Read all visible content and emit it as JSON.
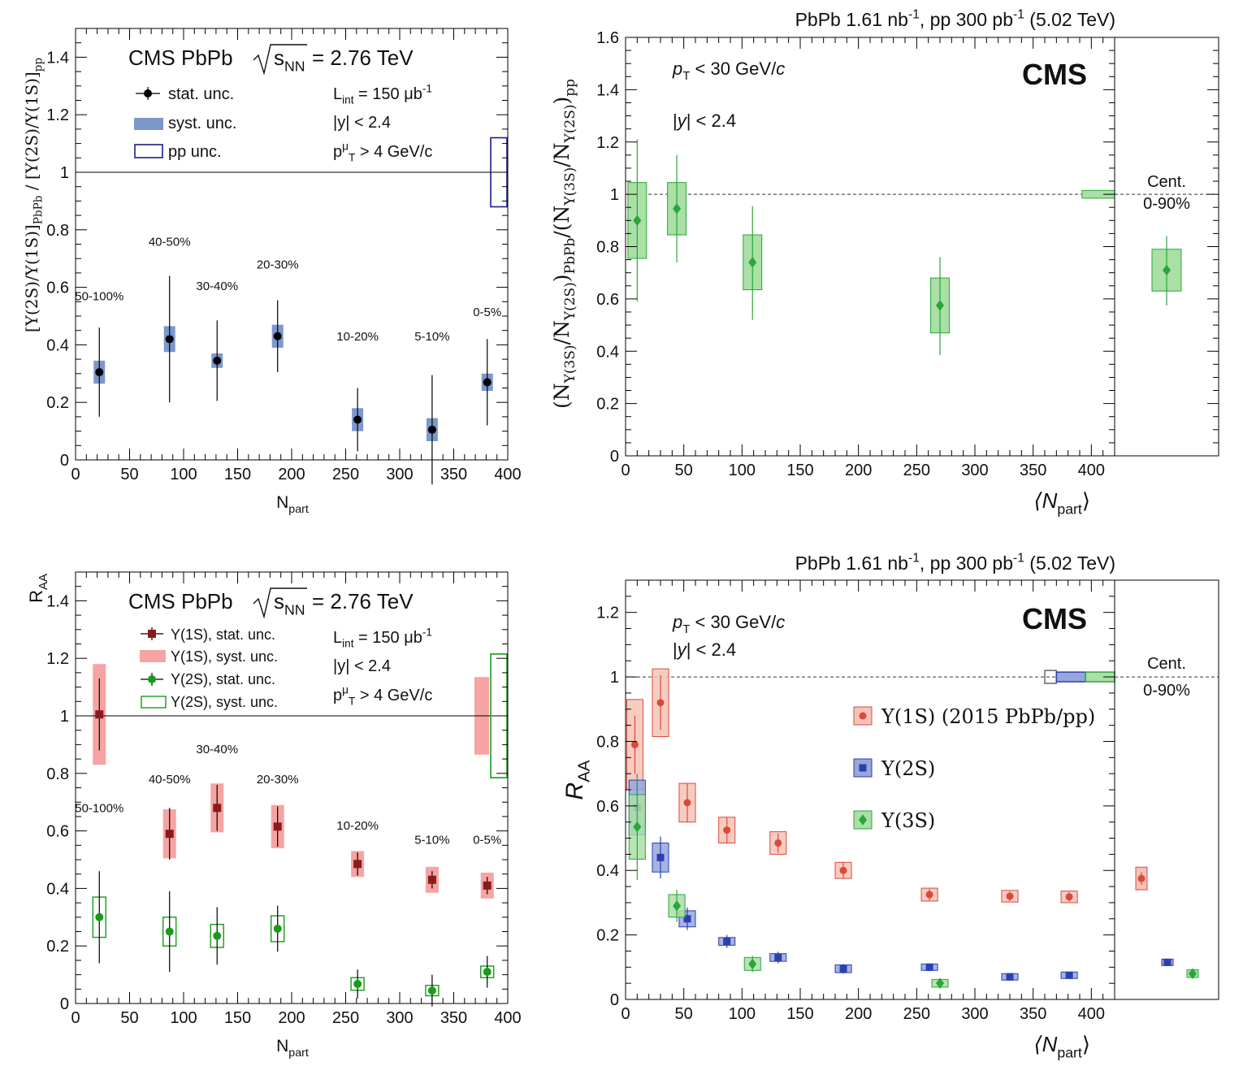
{
  "colors": {
    "syst_blue": "#7d97cc",
    "pp_box": "#1c1c8c",
    "red_fill": "#f6a3a3",
    "red_mark": "#8b1a1a",
    "green": "#1a9a1a",
    "green_fill": "#a9dfa1",
    "r_red": "#d94a3c",
    "r_red_fill": "#f4c3b6",
    "r_blue": "#2a3fb0",
    "r_blue_fill": "#98a6dc",
    "r_green": "#2aa63a",
    "r_green_fill": "#aadfa6"
  },
  "chart_data": [
    {
      "type": "scatter",
      "id": "tl",
      "title": "",
      "header": "CMS PbPb",
      "sqrt_symbol": "s",
      "sqrt_sub": "NN",
      "energy": "= 2.76 TeV",
      "xlabel": "N",
      "xlabel_sub": "part",
      "ylabel": "[Υ(2S)/Υ(1S)]",
      "ylabel_sub": "PbPb",
      "ylabel_mid": "/ [Υ(2S)/Υ(1S)]",
      "ylabel_sub2": "pp",
      "xlim": [
        0,
        400
      ],
      "ylim": [
        0,
        1.5
      ],
      "xticks": [
        "0",
        "50",
        "100",
        "150",
        "200",
        "250",
        "300",
        "350",
        "400"
      ],
      "xtick_values": [
        0,
        50,
        100,
        150,
        200,
        250,
        300,
        350,
        400
      ],
      "yticks": [
        "0",
        "0.2",
        "0.4",
        "0.6",
        "0.8",
        "1",
        "1.2",
        "1.4"
      ],
      "ytick_values": [
        0,
        0.2,
        0.4,
        0.6,
        0.8,
        1,
        1.2,
        1.4
      ],
      "legend": [
        {
          "label": "stat. unc.",
          "kind": "stat"
        },
        {
          "label": "syst. unc.",
          "kind": "syst"
        },
        {
          "label": "pp unc.",
          "kind": "pp"
        }
      ],
      "info": {
        "lumi_pre": "L",
        "lumi_sub": "int",
        "lumi_post": " = 150 μb",
        "lumi_sup": "-1",
        "rapidity": "|y| < 2.4",
        "pt_pre": "p",
        "pt_sup": "μ",
        "pt_sub": "T",
        "pt_post": " > 4 GeV/c"
      },
      "reference_line": 1,
      "pp_unc": {
        "low": 0.88,
        "high": 1.12
      },
      "series": [
        {
          "name": "Υ(2S)/Υ(1S) double ratio",
          "x": [
            22,
            87,
            131,
            187,
            261,
            330,
            381
          ],
          "y": [
            0.305,
            0.42,
            0.345,
            0.43,
            0.14,
            0.105,
            0.27
          ],
          "stat": [
            0.155,
            0.22,
            0.14,
            0.125,
            0.11,
            0.19,
            0.15
          ],
          "syst": [
            0.04,
            0.045,
            0.025,
            0.04,
            0.04,
            0.04,
            0.03
          ],
          "labels": [
            "50-100%",
            "40-50%",
            "30-40%",
            "20-30%",
            "10-20%",
            "5-10%",
            "0-5%"
          ],
          "label_y": [
            0.555,
            0.745,
            0.59,
            0.665,
            0.415,
            0.415,
            0.5
          ]
        }
      ]
    },
    {
      "type": "scatter",
      "id": "tr",
      "title": "PbPb 1.61 nb",
      "title_sup": "-1",
      "title_mid": ", pp 300 pb",
      "title_sup2": "-1",
      "title_post": " (5.02 TeV)",
      "logo": "CMS",
      "xlabel": "⟨N",
      "xlabel_sub": "part",
      "xlabel_post": "⟩",
      "ylabel": "(N",
      "ylabel_sub": "Υ(3S)",
      "ylabel_mid": "/N",
      "ylabel_sub2": "Υ(2S)",
      "ylabel_close": ")",
      "ylabel_sub3": "PbPb",
      "ylabel_slash": "/",
      "ylabel_mid2": "(N",
      "ylabel_sub4": "Υ(3S)",
      "ylabel_mid3": "/N",
      "ylabel_sub5": "Υ(2S)",
      "ylabel_close2": ")",
      "ylabel_sub6": "pp",
      "xlim": [
        0,
        420
      ],
      "ylim": [
        0,
        1.6
      ],
      "xticks": [
        "0",
        "50",
        "100",
        "150",
        "200",
        "250",
        "300",
        "350",
        "400"
      ],
      "xtick_values": [
        0,
        50,
        100,
        150,
        200,
        250,
        300,
        350,
        400
      ],
      "yticks": [
        "0",
        "0.2",
        "0.4",
        "0.6",
        "0.8",
        "1",
        "1.2",
        "1.4",
        "1.6"
      ],
      "ytick_values": [
        0,
        0.2,
        0.4,
        0.6,
        0.8,
        1,
        1.2,
        1.4,
        1.6
      ],
      "cuts": {
        "pt_pre": "p",
        "pt_sub": "T",
        "pt_post": " < 30 GeV/",
        "pt_unit": "c",
        "y_pre": "|",
        "y_var": "y",
        "y_post": "| < 2.4"
      },
      "reference_line": 1,
      "global_unc": {
        "x0": 392,
        "x1": 420,
        "low": 0.985,
        "high": 1.015
      },
      "cent_label": "Cent.",
      "cent_range": "0-90%",
      "series": [
        {
          "name": "Υ(3S)/Υ(2S) double ratio",
          "x": [
            10,
            44,
            109,
            270
          ],
          "y": [
            0.9,
            0.945,
            0.74,
            0.575
          ],
          "stat_lo": [
            0.31,
            0.205,
            0.22,
            0.19
          ],
          "stat_hi": [
            0.31,
            0.205,
            0.215,
            0.185
          ],
          "syst": [
            0.145,
            0.1,
            0.105,
            0.105
          ],
          "box_halfwidth": [
            8,
            8,
            8,
            8
          ]
        }
      ],
      "integrated": {
        "y": 0.71,
        "stat_lo": 0.135,
        "stat_hi": 0.13,
        "syst_lo": 0.08,
        "syst_hi": 0.08
      }
    },
    {
      "type": "scatter",
      "id": "bl",
      "title": "",
      "header": "CMS PbPb",
      "sqrt_symbol": "s",
      "sqrt_sub": "NN",
      "energy": "= 2.76 TeV",
      "xlabel": "N",
      "xlabel_sub": "part",
      "ylabel": "R",
      "ylabel_sub": "AA",
      "xlim": [
        0,
        400
      ],
      "ylim": [
        0,
        1.5
      ],
      "xticks": [
        "0",
        "50",
        "100",
        "150",
        "200",
        "250",
        "300",
        "350",
        "400"
      ],
      "xtick_values": [
        0,
        50,
        100,
        150,
        200,
        250,
        300,
        350,
        400
      ],
      "yticks": [
        "0",
        "0.2",
        "0.4",
        "0.6",
        "0.8",
        "1",
        "1.2",
        "1.4"
      ],
      "ytick_values": [
        0,
        0.2,
        0.4,
        0.6,
        0.8,
        1,
        1.2,
        1.4
      ],
      "legend": [
        {
          "label": "Υ(1S), stat. unc.",
          "kind": "red_stat"
        },
        {
          "label": "Υ(1S), syst. unc.",
          "kind": "red_syst"
        },
        {
          "label": "Υ(2S), stat. unc.",
          "kind": "green_stat"
        },
        {
          "label": "Υ(2S), syst. unc.",
          "kind": "green_syst"
        }
      ],
      "info": {
        "lumi_pre": "L",
        "lumi_sub": "int",
        "lumi_post": " = 150 μb",
        "lumi_sup": "-1",
        "rapidity": "|y| < 2.4",
        "pt_pre": "p",
        "pt_sup": "μ",
        "pt_sub": "T",
        "pt_post": " > 4 GeV/c"
      },
      "reference_line": 1,
      "global_unc_red": {
        "low": 0.865,
        "high": 1.135
      },
      "global_unc_green": {
        "low": 0.785,
        "high": 1.215
      },
      "series": [
        {
          "name": "Υ(1S)",
          "x": [
            22,
            87,
            131,
            187,
            261,
            330,
            381
          ],
          "y": [
            1.005,
            0.59,
            0.68,
            0.615,
            0.485,
            0.43,
            0.41
          ],
          "stat": [
            0.125,
            0.09,
            0.08,
            0.07,
            0.04,
            0.03,
            0.03
          ],
          "syst": [
            0.175,
            0.085,
            0.085,
            0.075,
            0.045,
            0.045,
            0.045
          ]
        },
        {
          "name": "Υ(2S)",
          "x": [
            22,
            87,
            131,
            187,
            261,
            330,
            381
          ],
          "y": [
            0.3,
            0.25,
            0.235,
            0.26,
            0.068,
            0.045,
            0.11
          ],
          "stat": [
            0.16,
            0.14,
            0.1,
            0.08,
            0.05,
            0.055,
            0.055
          ],
          "syst": [
            0.07,
            0.05,
            0.04,
            0.045,
            0.022,
            0.018,
            0.02
          ],
          "labels": [
            "50-100%",
            "40-50%",
            "30-40%",
            "20-30%",
            "10-20%",
            "5-10%",
            "0-5%"
          ],
          "label_y": [
            0.665,
            0.765,
            0.87,
            0.765,
            0.605,
            0.555,
            0.555
          ]
        }
      ]
    },
    {
      "type": "scatter",
      "id": "br",
      "title": "PbPb 1.61 nb",
      "title_sup": "-1",
      "title_mid": ", pp 300 pb",
      "title_sup2": "-1",
      "title_post": " (5.02 TeV)",
      "logo": "CMS",
      "xlabel": "⟨N",
      "xlabel_sub": "part",
      "xlabel_post": "⟩",
      "ylabel": "R",
      "ylabel_sub": "AA",
      "xlim": [
        0,
        420
      ],
      "ylim": [
        0,
        1.3
      ],
      "xticks": [
        "0",
        "50",
        "100",
        "150",
        "200",
        "250",
        "300",
        "350",
        "400"
      ],
      "xtick_values": [
        0,
        50,
        100,
        150,
        200,
        250,
        300,
        350,
        400
      ],
      "yticks": [
        "0",
        "0.2",
        "0.4",
        "0.6",
        "0.8",
        "1",
        "1.2"
      ],
      "ytick_values": [
        0,
        0.2,
        0.4,
        0.6,
        0.8,
        1,
        1.2
      ],
      "cuts": {
        "pt_pre": "p",
        "pt_sub": "T",
        "pt_post": " < 30 GeV/",
        "pt_unit": "c",
        "y_pre": "|",
        "y_var": "y",
        "y_post": "| < 2.4"
      },
      "reference_line": 1,
      "cent_label": "Cent.",
      "cent_range": "0-90%",
      "global_boxes": [
        {
          "x0": 360,
          "x1": 370,
          "low": 0.98,
          "high": 1.02,
          "style": "gray"
        },
        {
          "x0": 370,
          "x1": 395,
          "low": 0.985,
          "high": 1.015,
          "style": "blue"
        },
        {
          "x0": 395,
          "x1": 420,
          "low": 0.985,
          "high": 1.015,
          "style": "green"
        }
      ],
      "legend": [
        {
          "label": "Υ(1S) (2015 PbPb/pp)",
          "kind": "red"
        },
        {
          "label": "Υ(2S)",
          "kind": "blue"
        },
        {
          "label": "Υ(3S)",
          "kind": "green"
        }
      ],
      "series": [
        {
          "name": "Υ(1S)",
          "x": [
            8,
            30,
            53,
            87,
            131,
            187,
            261,
            330,
            381
          ],
          "y": [
            0.79,
            0.92,
            0.61,
            0.525,
            0.485,
            0.4,
            0.325,
            0.32,
            0.318
          ],
          "stat": [
            0.09,
            0.085,
            0.06,
            0.04,
            0.03,
            0.025,
            0.018,
            0.015,
            0.015
          ],
          "syst": [
            0.14,
            0.105,
            0.06,
            0.04,
            0.035,
            0.025,
            0.02,
            0.018,
            0.018
          ],
          "box_halfwidth": [
            7,
            7,
            7,
            7,
            7,
            7,
            7,
            7,
            7
          ]
        },
        {
          "name": "Υ(2S)",
          "x": [
            10,
            30,
            53,
            87,
            131,
            187,
            261,
            330,
            381
          ],
          "y": [
            0.595,
            0.44,
            0.25,
            0.18,
            0.13,
            0.095,
            0.1,
            0.07,
            0.075
          ],
          "stat": [
            0.08,
            0.065,
            0.035,
            0.02,
            0.018,
            0.015,
            0.012,
            0.012,
            0.01
          ],
          "syst": [
            0.085,
            0.045,
            0.025,
            0.012,
            0.012,
            0.012,
            0.01,
            0.01,
            0.01
          ],
          "box_halfwidth": [
            7,
            7,
            7,
            7,
            7,
            7,
            7,
            7,
            7
          ]
        },
        {
          "name": "Υ(3S)",
          "x": [
            10,
            44,
            109,
            270
          ],
          "y": [
            0.535,
            0.29,
            0.11,
            0.05
          ],
          "stat": [
            0.165,
            0.05,
            0.025,
            0.015
          ],
          "syst": [
            0.1,
            0.035,
            0.02,
            0.012
          ],
          "box_halfwidth": [
            7,
            7,
            7,
            7
          ]
        }
      ],
      "integrated": [
        {
          "name": "Υ(1S)",
          "y": 0.375,
          "stat": 0.02,
          "syst": 0.035
        },
        {
          "name": "Υ(2S)",
          "y": 0.115,
          "stat": 0.01,
          "syst": 0.01
        },
        {
          "name": "Υ(3S)",
          "y": 0.08,
          "stat": 0.015,
          "syst": 0.012
        }
      ]
    }
  ]
}
